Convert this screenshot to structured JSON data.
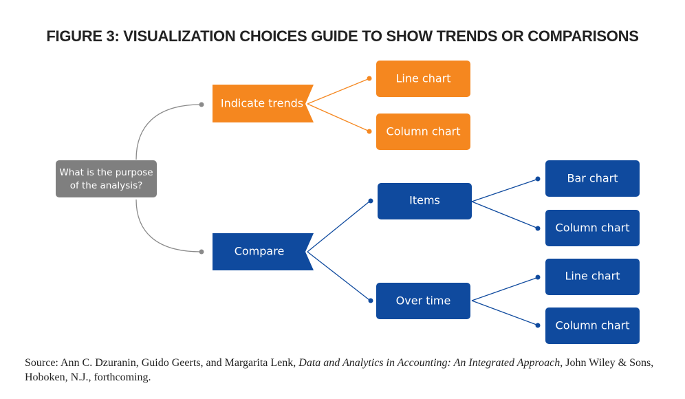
{
  "title": "FIGURE 3: VISUALIZATION CHOICES GUIDE TO SHOW TRENDS OR COMPARISONS",
  "colors": {
    "orange": "#F5871F",
    "blue": "#0F4A9E",
    "gray": "#7F7F7F",
    "connector_gray": "#8A8A8A"
  },
  "nodes": {
    "root": {
      "line1": "What is the purpose",
      "line2": "of the analysis?"
    },
    "indicate_trends": "Indicate trends",
    "trend_line_chart": "Line chart",
    "trend_column_chart": "Column chart",
    "compare": "Compare",
    "items": "Items",
    "items_bar_chart": "Bar chart",
    "items_column_chart": "Column chart",
    "over_time": "Over time",
    "overtime_line_chart": "Line chart",
    "overtime_column_chart": "Column chart"
  },
  "source": {
    "prefix": "Source: Ann C. Dzuranin, Guido Geerts, and Margarita Lenk, ",
    "book": "Data and Analytics in Accounting: An Integrated Approach",
    "suffix": ", John Wiley & Sons, Hoboken, N.J., forthcoming."
  }
}
